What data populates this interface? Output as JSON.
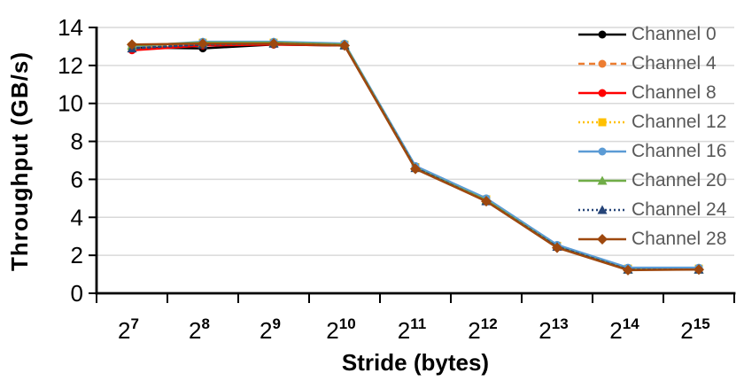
{
  "chart_data": {
    "type": "line",
    "title": "",
    "xlabel": "Stride (bytes)",
    "ylabel": "Throughput (GB/s)",
    "x_tick_base": "2",
    "x_tick_exponents": [
      "7",
      "8",
      "9",
      "10",
      "11",
      "12",
      "13",
      "14",
      "15"
    ],
    "categories": [
      "2^7",
      "2^8",
      "2^9",
      "2^10",
      "2^11",
      "2^12",
      "2^13",
      "2^14",
      "2^15"
    ],
    "ylim": [
      0,
      14
    ],
    "ytick_step": 2,
    "ytick_labels": [
      "0",
      "2",
      "4",
      "6",
      "8",
      "10",
      "12",
      "14"
    ],
    "grid": "horizontal",
    "legend_position": "inside-top-right",
    "colors": {
      "background": "#FFFFFF",
      "gridline": "#D9D9D9",
      "axis": "#000000",
      "tick_label": "#000000",
      "legend_text": "#595959"
    },
    "series": [
      {
        "name": "Channel 0",
        "color": "#000000",
        "line_style": "solid",
        "marker": "circle",
        "values": [
          12.95,
          12.9,
          13.1,
          13.05,
          6.6,
          4.85,
          2.45,
          1.25,
          1.25
        ]
      },
      {
        "name": "Channel 4",
        "color": "#ED7D31",
        "line_style": "dashed",
        "marker": "circle",
        "values": [
          12.9,
          13.1,
          13.15,
          13.05,
          6.6,
          4.85,
          2.45,
          1.25,
          1.25
        ]
      },
      {
        "name": "Channel 8",
        "color": "#FF0000",
        "line_style": "solid",
        "marker": "circle",
        "values": [
          12.8,
          13.05,
          13.1,
          13.05,
          6.6,
          4.85,
          2.45,
          1.25,
          1.25
        ]
      },
      {
        "name": "Channel 12",
        "color": "#FFC000",
        "line_style": "dotted",
        "marker": "square",
        "values": [
          13.0,
          13.2,
          13.2,
          13.1,
          6.65,
          4.95,
          2.5,
          1.3,
          1.3
        ]
      },
      {
        "name": "Channel 16",
        "color": "#5B9BD5",
        "line_style": "solid",
        "marker": "circle",
        "values": [
          13.0,
          13.25,
          13.25,
          13.15,
          6.7,
          5.0,
          2.55,
          1.35,
          1.35
        ]
      },
      {
        "name": "Channel 20",
        "color": "#70AD47",
        "line_style": "solid",
        "marker": "triangle",
        "values": [
          13.05,
          13.2,
          13.2,
          13.1,
          6.6,
          4.9,
          2.45,
          1.25,
          1.25
        ]
      },
      {
        "name": "Channel 24",
        "color": "#264478",
        "line_style": "dotted",
        "marker": "triangle",
        "values": [
          12.9,
          13.1,
          13.15,
          13.05,
          6.6,
          4.85,
          2.45,
          1.25,
          1.25
        ]
      },
      {
        "name": "Channel 28",
        "color": "#9E480E",
        "line_style": "solid",
        "marker": "diamond",
        "values": [
          13.1,
          13.15,
          13.15,
          13.05,
          6.55,
          4.85,
          2.4,
          1.22,
          1.25
        ]
      }
    ]
  }
}
